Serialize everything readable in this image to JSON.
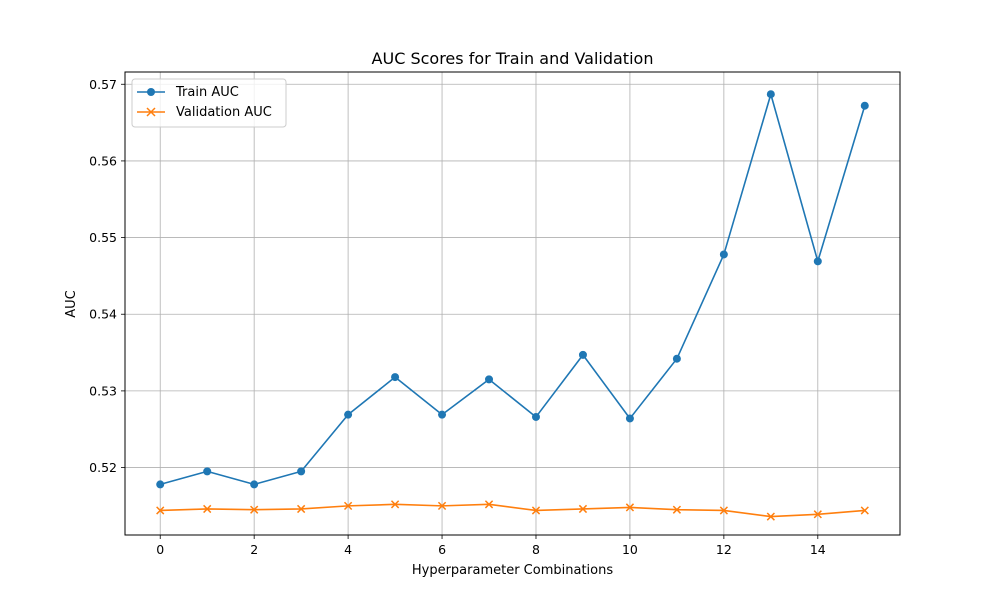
{
  "chart_data": {
    "type": "line",
    "title": "AUC Scores for Train and Validation",
    "xlabel": "Hyperparameter Combinations",
    "ylabel": "AUC",
    "x": [
      0,
      1,
      2,
      3,
      4,
      5,
      6,
      7,
      8,
      9,
      10,
      11,
      12,
      13,
      14,
      15
    ],
    "xlim": [
      -0.75,
      15.75
    ],
    "ylim": [
      0.5112,
      0.5716
    ],
    "xticks": [
      0,
      2,
      4,
      6,
      8,
      10,
      12,
      14
    ],
    "yticks": [
      0.52,
      0.53,
      0.54,
      0.55,
      0.56,
      0.57
    ],
    "grid": true,
    "legend_position": "top-left",
    "series": [
      {
        "name": "Train AUC",
        "color": "#1f77b4",
        "marker": "circle",
        "values": [
          0.5178,
          0.5195,
          0.5178,
          0.5195,
          0.5269,
          0.5318,
          0.5269,
          0.5315,
          0.5266,
          0.5347,
          0.5264,
          0.5342,
          0.5478,
          0.5687,
          0.5469,
          0.5672
        ]
      },
      {
        "name": "Validation AUC",
        "color": "#ff7f0e",
        "marker": "x",
        "values": [
          0.5144,
          0.5146,
          0.5145,
          0.5146,
          0.515,
          0.5152,
          0.515,
          0.5152,
          0.5144,
          0.5146,
          0.5148,
          0.5145,
          0.5144,
          0.5136,
          0.5139,
          0.5144
        ]
      }
    ]
  }
}
